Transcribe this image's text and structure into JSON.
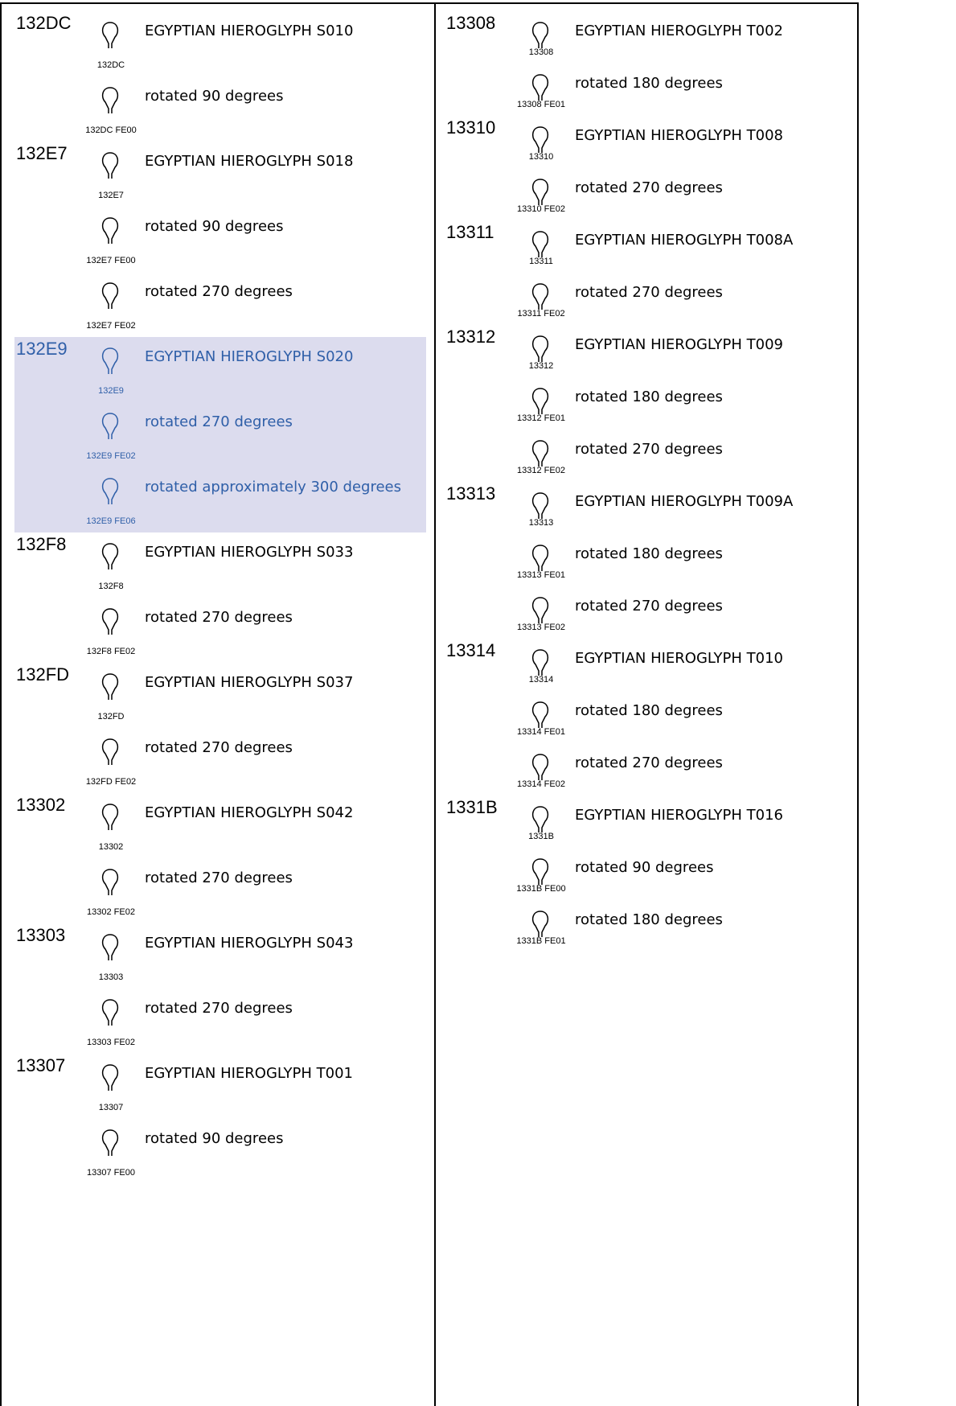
{
  "columns": [
    {
      "entries": [
        {
          "code": "132DC",
          "name": "EGYPTIAN HIEROGLYPH S010",
          "glyph_label": "132DC",
          "variants": [
            {
              "sequence": "132DC FE00",
              "description": "rotated 90 degrees"
            }
          ]
        },
        {
          "code": "132E7",
          "name": "EGYPTIAN HIEROGLYPH S018",
          "glyph_label": "132E7",
          "variants": [
            {
              "sequence": "132E7 FE00",
              "description": "rotated 90 degrees"
            },
            {
              "sequence": "132E7 FE02",
              "description": "rotated 270 degrees"
            }
          ]
        },
        {
          "code": "132E9",
          "name": "EGYPTIAN HIEROGLYPH S020",
          "glyph_label": "132E9",
          "highlighted": true,
          "variants": [
            {
              "sequence": "132E9 FE02",
              "description": "rotated 270 degrees"
            },
            {
              "sequence": "132E9 FE06",
              "description": "rotated approximately 300 degrees"
            }
          ]
        },
        {
          "code": "132F8",
          "name": "EGYPTIAN HIEROGLYPH S033",
          "glyph_label": "132F8",
          "variants": [
            {
              "sequence": "132F8 FE02",
              "description": "rotated 270 degrees"
            }
          ]
        },
        {
          "code": "132FD",
          "name": "EGYPTIAN HIEROGLYPH S037",
          "glyph_label": "132FD",
          "variants": [
            {
              "sequence": "132FD FE02",
              "description": "rotated 270 degrees"
            }
          ]
        },
        {
          "code": "13302",
          "name": "EGYPTIAN HIEROGLYPH S042",
          "glyph_label": "13302",
          "variants": [
            {
              "sequence": "13302 FE02",
              "description": "rotated 270 degrees"
            }
          ]
        },
        {
          "code": "13303",
          "name": "EGYPTIAN HIEROGLYPH S043",
          "glyph_label": "13303",
          "variants": [
            {
              "sequence": "13303 FE02",
              "description": "rotated 270 degrees"
            }
          ]
        },
        {
          "code": "13307",
          "name": "EGYPTIAN HIEROGLYPH T001",
          "glyph_label": "13307",
          "variants": [
            {
              "sequence": "13307 FE00",
              "description": "rotated 90 degrees"
            }
          ]
        }
      ]
    },
    {
      "entries": [
        {
          "code": "13308",
          "name": "EGYPTIAN HIEROGLYPH T002",
          "glyph_label": "13308",
          "variants": [
            {
              "sequence": "13308 FE01",
              "description": "rotated 180 degrees"
            }
          ]
        },
        {
          "code": "13310",
          "name": "EGYPTIAN HIEROGLYPH T008",
          "glyph_label": "13310",
          "variants": [
            {
              "sequence": "13310 FE02",
              "description": "rotated 270 degrees"
            }
          ]
        },
        {
          "code": "13311",
          "name": "EGYPTIAN HIEROGLYPH T008A",
          "glyph_label": "13311",
          "variants": [
            {
              "sequence": "13311 FE02",
              "description": "rotated 270 degrees"
            }
          ]
        },
        {
          "code": "13312",
          "name": "EGYPTIAN HIEROGLYPH T009",
          "glyph_label": "13312",
          "variants": [
            {
              "sequence": "13312 FE01",
              "description": "rotated 180 degrees"
            },
            {
              "sequence": "13312 FE02",
              "description": "rotated 270 degrees"
            }
          ]
        },
        {
          "code": "13313",
          "name": "EGYPTIAN HIEROGLYPH T009A",
          "glyph_label": "13313",
          "variants": [
            {
              "sequence": "13313 FE01",
              "description": "rotated 180 degrees"
            },
            {
              "sequence": "13313 FE02",
              "description": "rotated 270 degrees"
            }
          ]
        },
        {
          "code": "13314",
          "name": "EGYPTIAN HIEROGLYPH T010",
          "glyph_label": "13314",
          "variants": [
            {
              "sequence": "13314 FE01",
              "description": "rotated 180 degrees"
            },
            {
              "sequence": "13314 FE02",
              "description": "rotated 270 degrees"
            }
          ]
        },
        {
          "code": "1331B",
          "name": "EGYPTIAN HIEROGLYPH T016",
          "glyph_label": "1331B",
          "variants": [
            {
              "sequence": "1331B FE00",
              "description": "rotated 90 degrees"
            },
            {
              "sequence": "1331B FE01",
              "description": "rotated 180 degrees"
            }
          ]
        }
      ]
    }
  ]
}
